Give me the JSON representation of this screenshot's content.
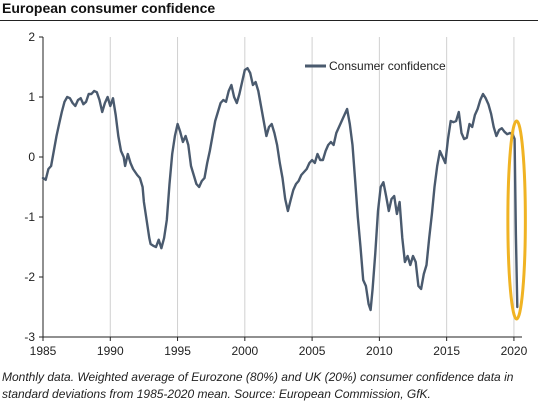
{
  "title": "European consumer confidence",
  "caption": "Monthly data. Weighted average of Eurozone (80%) and UK (20%) consumer confidence data in standard deviations from 1985-2020 mean. Source: European Commission, GfK.",
  "chart_data": {
    "type": "line",
    "title": "European consumer confidence",
    "xlabel": "",
    "ylabel": "",
    "xlim": [
      1985,
      2020.6
    ],
    "ylim": [
      -3,
      2
    ],
    "x_ticks": [
      1985,
      1990,
      1995,
      2000,
      2005,
      2010,
      2015,
      2020
    ],
    "y_ticks": [
      2,
      1,
      0,
      -1,
      -2,
      -3
    ],
    "grid": "vertical",
    "legend": "top-right",
    "colors": {
      "series": "#4a5a6e",
      "highlight": "#f0b323",
      "axis": "#222222",
      "grid": "#d0d0d0"
    },
    "highlight": {
      "type": "ellipse",
      "x_center": 2020.2,
      "y_center": -1.05,
      "x_radius": 0.65,
      "y_radius": 1.65
    },
    "series": [
      {
        "name": "Consumer confidence",
        "points": [
          [
            1985.0,
            -0.35
          ],
          [
            1985.2,
            -0.38
          ],
          [
            1985.4,
            -0.2
          ],
          [
            1985.6,
            -0.15
          ],
          [
            1985.8,
            0.1
          ],
          [
            1986.0,
            0.35
          ],
          [
            1986.2,
            0.55
          ],
          [
            1986.4,
            0.75
          ],
          [
            1986.6,
            0.92
          ],
          [
            1986.8,
            1.0
          ],
          [
            1987.0,
            0.98
          ],
          [
            1987.2,
            0.9
          ],
          [
            1987.4,
            0.85
          ],
          [
            1987.6,
            0.95
          ],
          [
            1987.8,
            0.98
          ],
          [
            1988.0,
            0.88
          ],
          [
            1988.2,
            0.92
          ],
          [
            1988.4,
            1.05
          ],
          [
            1988.6,
            1.05
          ],
          [
            1988.8,
            1.1
          ],
          [
            1989.0,
            1.08
          ],
          [
            1989.2,
            0.95
          ],
          [
            1989.4,
            0.75
          ],
          [
            1989.6,
            0.9
          ],
          [
            1989.8,
            1.0
          ],
          [
            1990.0,
            0.85
          ],
          [
            1990.2,
            0.98
          ],
          [
            1990.4,
            0.7
          ],
          [
            1990.6,
            0.35
          ],
          [
            1990.8,
            0.1
          ],
          [
            1991.0,
            0.0
          ],
          [
            1991.1,
            -0.15
          ],
          [
            1991.3,
            0.05
          ],
          [
            1991.5,
            -0.1
          ],
          [
            1991.7,
            -0.2
          ],
          [
            1992.0,
            -0.3
          ],
          [
            1992.2,
            -0.35
          ],
          [
            1992.4,
            -0.5
          ],
          [
            1992.5,
            -0.75
          ],
          [
            1992.7,
            -1.05
          ],
          [
            1992.9,
            -1.35
          ],
          [
            1993.0,
            -1.45
          ],
          [
            1993.2,
            -1.48
          ],
          [
            1993.4,
            -1.5
          ],
          [
            1993.6,
            -1.38
          ],
          [
            1993.8,
            -1.52
          ],
          [
            1994.0,
            -1.35
          ],
          [
            1994.2,
            -1.05
          ],
          [
            1994.4,
            -0.45
          ],
          [
            1994.6,
            0.05
          ],
          [
            1994.8,
            0.35
          ],
          [
            1995.0,
            0.55
          ],
          [
            1995.2,
            0.42
          ],
          [
            1995.4,
            0.25
          ],
          [
            1995.6,
            0.35
          ],
          [
            1995.8,
            0.2
          ],
          [
            1996.0,
            -0.15
          ],
          [
            1996.2,
            -0.3
          ],
          [
            1996.4,
            -0.45
          ],
          [
            1996.6,
            -0.5
          ],
          [
            1996.8,
            -0.4
          ],
          [
            1997.0,
            -0.35
          ],
          [
            1997.2,
            -0.1
          ],
          [
            1997.4,
            0.1
          ],
          [
            1997.6,
            0.35
          ],
          [
            1997.8,
            0.6
          ],
          [
            1998.0,
            0.75
          ],
          [
            1998.2,
            0.9
          ],
          [
            1998.4,
            0.95
          ],
          [
            1998.6,
            0.92
          ],
          [
            1998.8,
            1.1
          ],
          [
            1999.0,
            1.2
          ],
          [
            1999.2,
            1.0
          ],
          [
            1999.4,
            0.9
          ],
          [
            1999.6,
            1.05
          ],
          [
            1999.8,
            1.25
          ],
          [
            2000.0,
            1.45
          ],
          [
            2000.2,
            1.48
          ],
          [
            2000.4,
            1.4
          ],
          [
            2000.6,
            1.2
          ],
          [
            2000.8,
            1.25
          ],
          [
            2001.0,
            1.1
          ],
          [
            2001.2,
            0.85
          ],
          [
            2001.4,
            0.6
          ],
          [
            2001.6,
            0.35
          ],
          [
            2001.8,
            0.5
          ],
          [
            2002.0,
            0.55
          ],
          [
            2002.2,
            0.4
          ],
          [
            2002.4,
            0.2
          ],
          [
            2002.6,
            -0.1
          ],
          [
            2002.8,
            -0.35
          ],
          [
            2003.0,
            -0.7
          ],
          [
            2003.2,
            -0.9
          ],
          [
            2003.4,
            -0.72
          ],
          [
            2003.6,
            -0.55
          ],
          [
            2003.8,
            -0.45
          ],
          [
            2004.0,
            -0.4
          ],
          [
            2004.2,
            -0.3
          ],
          [
            2004.4,
            -0.25
          ],
          [
            2004.6,
            -0.2
          ],
          [
            2004.8,
            -0.1
          ],
          [
            2005.0,
            -0.05
          ],
          [
            2005.2,
            -0.1
          ],
          [
            2005.4,
            0.05
          ],
          [
            2005.6,
            -0.05
          ],
          [
            2005.8,
            -0.05
          ],
          [
            2006.0,
            0.1
          ],
          [
            2006.2,
            0.2
          ],
          [
            2006.4,
            0.25
          ],
          [
            2006.6,
            0.2
          ],
          [
            2006.8,
            0.4
          ],
          [
            2007.0,
            0.5
          ],
          [
            2007.2,
            0.6
          ],
          [
            2007.4,
            0.7
          ],
          [
            2007.6,
            0.8
          ],
          [
            2007.8,
            0.55
          ],
          [
            2008.0,
            0.2
          ],
          [
            2008.2,
            -0.4
          ],
          [
            2008.4,
            -1.0
          ],
          [
            2008.6,
            -1.5
          ],
          [
            2008.8,
            -2.05
          ],
          [
            2009.0,
            -2.15
          ],
          [
            2009.2,
            -2.45
          ],
          [
            2009.35,
            -2.55
          ],
          [
            2009.5,
            -2.2
          ],
          [
            2009.7,
            -1.6
          ],
          [
            2009.9,
            -0.9
          ],
          [
            2010.1,
            -0.5
          ],
          [
            2010.3,
            -0.42
          ],
          [
            2010.5,
            -0.65
          ],
          [
            2010.7,
            -0.9
          ],
          [
            2010.9,
            -0.7
          ],
          [
            2011.1,
            -0.65
          ],
          [
            2011.3,
            -0.95
          ],
          [
            2011.5,
            -0.75
          ],
          [
            2011.7,
            -1.35
          ],
          [
            2011.9,
            -1.75
          ],
          [
            2012.1,
            -1.65
          ],
          [
            2012.3,
            -1.8
          ],
          [
            2012.5,
            -1.65
          ],
          [
            2012.7,
            -1.75
          ],
          [
            2012.9,
            -2.15
          ],
          [
            2013.1,
            -2.2
          ],
          [
            2013.3,
            -1.95
          ],
          [
            2013.5,
            -1.8
          ],
          [
            2013.7,
            -1.35
          ],
          [
            2013.9,
            -0.95
          ],
          [
            2014.1,
            -0.5
          ],
          [
            2014.3,
            -0.15
          ],
          [
            2014.5,
            0.1
          ],
          [
            2014.7,
            0.0
          ],
          [
            2014.9,
            -0.1
          ],
          [
            2015.1,
            0.3
          ],
          [
            2015.3,
            0.6
          ],
          [
            2015.5,
            0.58
          ],
          [
            2015.7,
            0.6
          ],
          [
            2015.9,
            0.75
          ],
          [
            2016.1,
            0.4
          ],
          [
            2016.3,
            0.3
          ],
          [
            2016.5,
            0.32
          ],
          [
            2016.7,
            0.55
          ],
          [
            2016.9,
            0.5
          ],
          [
            2017.1,
            0.7
          ],
          [
            2017.3,
            0.8
          ],
          [
            2017.5,
            0.95
          ],
          [
            2017.7,
            1.05
          ],
          [
            2017.9,
            0.98
          ],
          [
            2018.1,
            0.88
          ],
          [
            2018.3,
            0.72
          ],
          [
            2018.5,
            0.5
          ],
          [
            2018.7,
            0.35
          ],
          [
            2018.9,
            0.45
          ],
          [
            2019.1,
            0.48
          ],
          [
            2019.3,
            0.42
          ],
          [
            2019.5,
            0.38
          ],
          [
            2019.7,
            0.4
          ],
          [
            2019.9,
            0.38
          ],
          [
            2020.05,
            0.3
          ],
          [
            2020.15,
            -1.3
          ],
          [
            2020.25,
            -2.5
          ]
        ]
      }
    ]
  }
}
